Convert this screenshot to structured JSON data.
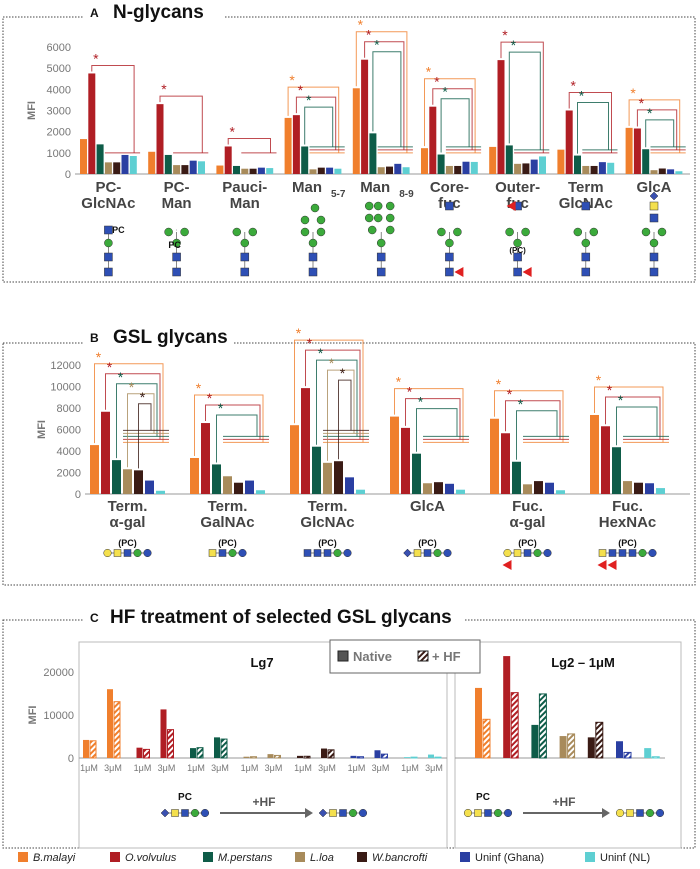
{
  "colors": {
    "B.malayi": "#F07F2D",
    "O.volvulus": "#B01E24",
    "M.perstans": "#0E5C48",
    "L.loa": "#A88B5B",
    "W.bancrofti": "#3A1B15",
    "Uninf (Ghana)": "#2A3FA2",
    "Uninf (NL)": "#5ECFD2"
  },
  "series": [
    "B.malayi",
    "O.volvulus",
    "M.perstans",
    "L.loa",
    "W.bancrofti",
    "Uninf (Ghana)",
    "Uninf (NL)"
  ],
  "legend": {
    "items": [
      "B.malayi",
      "O.volvulus",
      "M.perstans",
      "L.loa",
      "W.bancrofti",
      "Uninf (Ghana)",
      "Uninf (NL)"
    ]
  },
  "glycan_labels": {
    "pc": "PC",
    "pc_paren": "(PC)",
    "hf_arrow": "+HF"
  },
  "chart_data": [
    {
      "panel": "A",
      "title": "N-glycans",
      "type": "bar",
      "ylabel": "MFI",
      "ylim": [
        0,
        6000
      ],
      "yticks": [
        0,
        1000,
        2000,
        3000,
        4000,
        5000,
        6000
      ],
      "categories": [
        [
          "PC-",
          "GlcNAc"
        ],
        [
          "PC-",
          "Man"
        ],
        [
          "Pauci-",
          "Man"
        ],
        [
          "Man",
          "5-7"
        ],
        [
          "Man",
          "8-9"
        ],
        [
          "Core-",
          "fuc"
        ],
        [
          "Outer-",
          "fuc"
        ],
        [
          "Term",
          "GlcNAc"
        ],
        [
          "GlcA",
          ""
        ]
      ],
      "values": [
        [
          1650,
          4750,
          1400,
          550,
          550,
          900,
          850
        ],
        [
          1050,
          3300,
          900,
          420,
          420,
          630,
          600
        ],
        [
          400,
          1300,
          380,
          250,
          250,
          300,
          280
        ],
        [
          2650,
          2780,
          1300,
          220,
          300,
          300,
          250
        ],
        [
          4050,
          5400,
          1920,
          320,
          350,
          480,
          320
        ],
        [
          1220,
          3180,
          920,
          380,
          380,
          580,
          570
        ],
        [
          1280,
          5380,
          1350,
          480,
          500,
          680,
          830
        ],
        [
          1150,
          3000,
          870,
          380,
          380,
          560,
          530
        ],
        [
          2180,
          2150,
          1170,
          180,
          260,
          220,
          130
        ]
      ],
      "significant": [
        [
          1
        ],
        [
          1
        ],
        [
          1
        ],
        [
          0,
          1,
          2
        ],
        [
          0,
          1,
          2
        ],
        [
          0,
          1,
          2
        ],
        [
          1,
          2
        ],
        [
          1,
          2
        ],
        [
          0,
          1,
          2
        ]
      ],
      "significance_mark": "*"
    },
    {
      "panel": "B",
      "title": "GSL glycans",
      "type": "bar",
      "ylabel": "MFI",
      "ylim": [
        0,
        12000
      ],
      "yticks": [
        0,
        2000,
        4000,
        6000,
        8000,
        10000,
        12000
      ],
      "categories": [
        [
          "Term.",
          "α-gal"
        ],
        [
          "Term.",
          "GalNAc"
        ],
        [
          "Term.",
          "GlcNAc"
        ],
        [
          "GlcA",
          ""
        ],
        [
          "Fuc.",
          "α-gal"
        ],
        [
          "Fuc.",
          "HexNAc"
        ]
      ],
      "values": [
        [
          4550,
          7650,
          3150,
          2300,
          2200,
          1250,
          300
        ],
        [
          3350,
          6600,
          2750,
          1650,
          1050,
          1250,
          350
        ],
        [
          6400,
          9850,
          4400,
          2900,
          3050,
          1550,
          400
        ],
        [
          7200,
          6150,
          3750,
          1000,
          1100,
          950,
          400
        ],
        [
          7000,
          5650,
          3000,
          900,
          1200,
          1050,
          350
        ],
        [
          7350,
          6300,
          4350,
          1200,
          1050,
          1000,
          550
        ]
      ],
      "significant": [
        [
          0,
          1,
          2,
          3,
          4
        ],
        [
          0,
          1,
          2
        ],
        [
          0,
          1,
          2,
          3,
          4
        ],
        [
          0,
          1,
          2
        ],
        [
          0,
          1,
          2
        ],
        [
          0,
          1,
          2
        ]
      ],
      "significance_mark": "*"
    },
    {
      "panel": "C",
      "title": "HF treatment of selected GSL glycans",
      "type": "bar",
      "ylabel": "MFI",
      "ylim": [
        0,
        25000
      ],
      "yticks": [
        0,
        10000,
        20000
      ],
      "legend": {
        "native": "Native",
        "hf": "+ HF"
      },
      "subplots": [
        {
          "title": "Lg7",
          "doses": [
            "1μM",
            "3μM"
          ],
          "native": [
            [
              4200,
              16000
            ],
            [
              2400,
              11300
            ],
            [
              2300,
              4800
            ],
            [
              300,
              900
            ],
            [
              500,
              2200
            ],
            [
              500,
              1800
            ],
            [
              200,
              800
            ]
          ],
          "hf": [
            [
              4000,
              13100
            ],
            [
              2000,
              6600
            ],
            [
              2400,
              4400
            ],
            [
              300,
              600
            ],
            [
              400,
              1900
            ],
            [
              300,
              900
            ],
            [
              200,
              200
            ]
          ]
        },
        {
          "title": "Lg2 – 1μM",
          "native": [
            16300,
            23700,
            7700,
            5100,
            4800,
            3900,
            2300
          ],
          "hf": [
            9000,
            15200,
            14900,
            5600,
            8300,
            1300,
            300
          ]
        }
      ]
    }
  ]
}
